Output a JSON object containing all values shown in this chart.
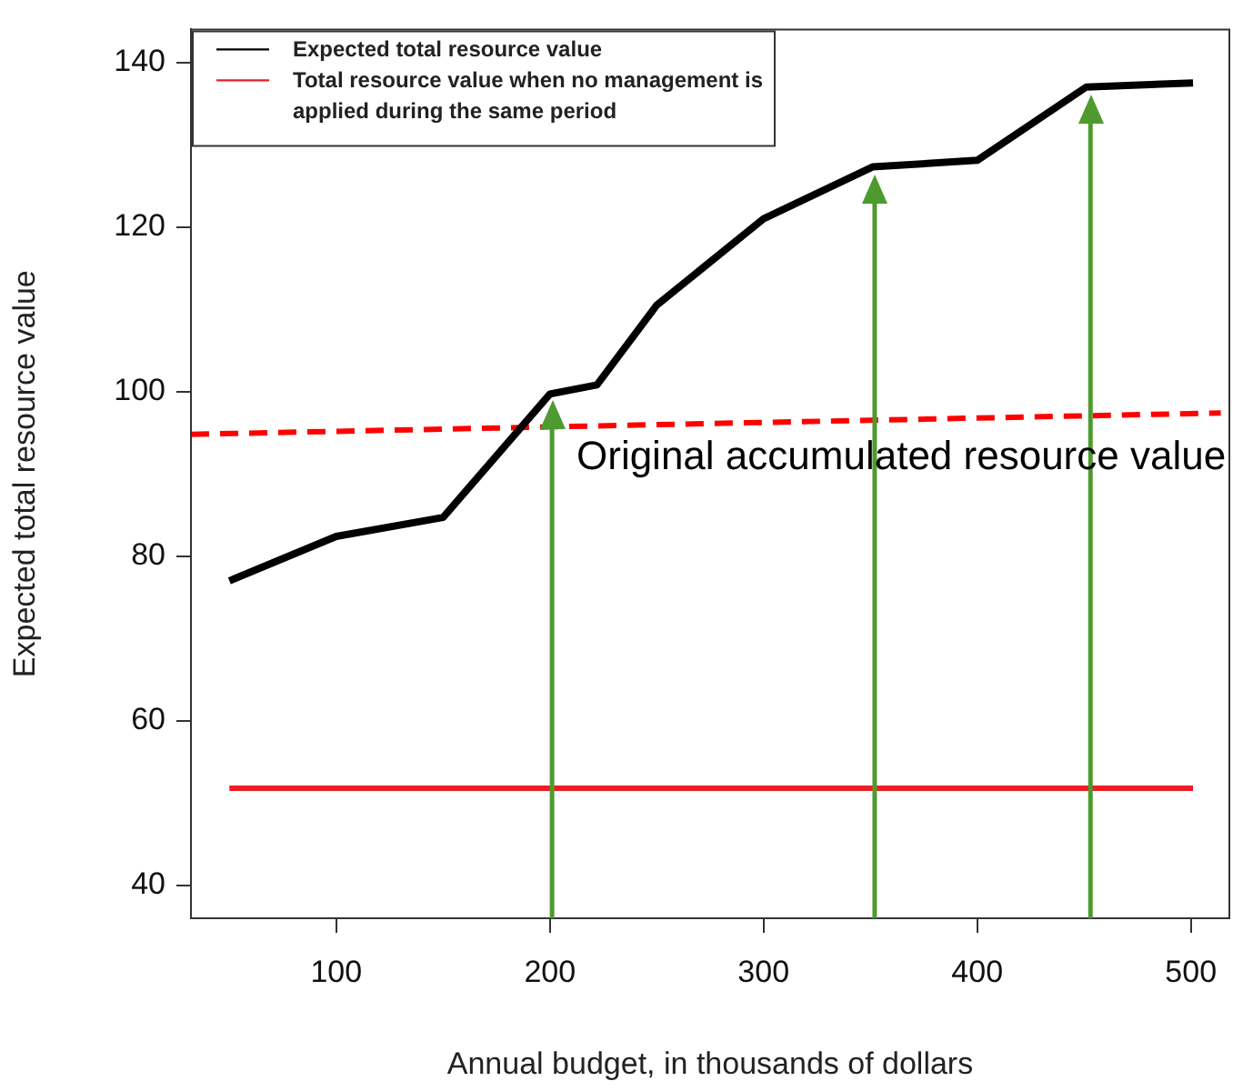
{
  "chart_data": {
    "type": "line",
    "xlabel": "Annual budget, in thousands of dollars",
    "ylabel": "Expected total resource value",
    "xlim": [
      32,
      518
    ],
    "xticks": [
      100,
      200,
      300,
      400,
      500
    ],
    "ylim": [
      36,
      144
    ],
    "yticks": [
      40,
      60,
      80,
      100,
      120,
      140
    ],
    "series": [
      {
        "name": "Expected total resource value",
        "color": "#000000",
        "x": [
          50,
          100,
          150,
          200,
          222,
          250,
          300,
          351,
          400,
          451,
          501
        ],
        "values": [
          77.0,
          82.4,
          84.7,
          99.7,
          100.8,
          110.5,
          121.0,
          127.3,
          128.1,
          137.0,
          137.5
        ]
      },
      {
        "name": "Total resource value when no management is applied during the same period",
        "color": "#ee1c25",
        "x": [
          50,
          501
        ],
        "values": [
          51.8,
          51.8
        ]
      },
      {
        "color": "#ff0000",
        "line_style": "dashed",
        "x": [
          32,
          514
        ],
        "values": [
          94.8,
          97.4
        ]
      }
    ],
    "ref_lines": [
      {
        "axis": "x",
        "value": 201,
        "color": "#4e9a2e"
      },
      {
        "axis": "x",
        "value": 352,
        "color": "#4e9a2e"
      },
      {
        "axis": "x",
        "value": 453,
        "color": "#4e9a2e"
      }
    ],
    "annotations": [
      "Original accumulated resource value"
    ],
    "grid": false,
    "legend": "top left",
    "marker": "none"
  }
}
